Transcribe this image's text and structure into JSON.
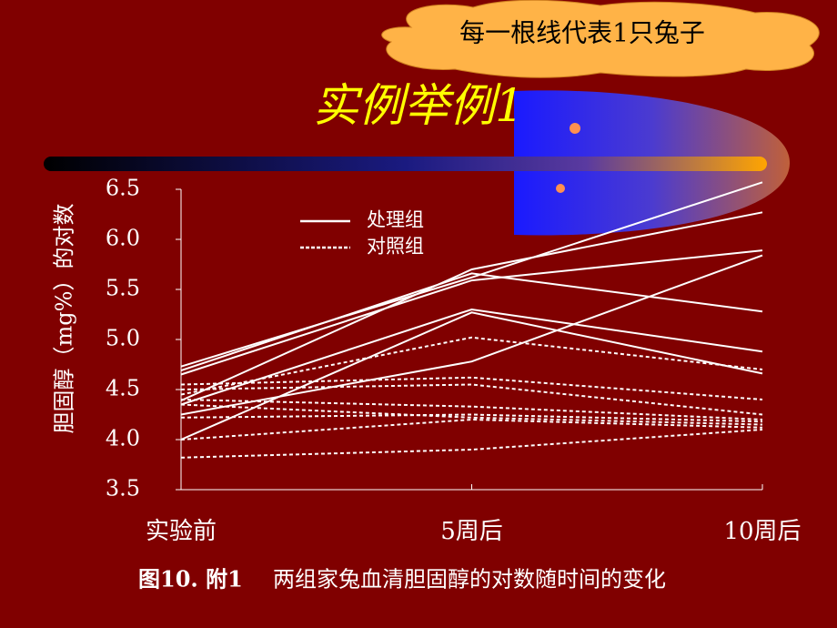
{
  "note_bubble": "每一根线代表1只兔子",
  "chart_data": {
    "type": "line",
    "title": "实例举例1",
    "y_label": "胆固醇（mg%）的对数",
    "categories": [
      "实验前",
      "5周后",
      "10周后"
    ],
    "ylim": [
      3.5,
      6.5
    ],
    "yticks": [
      3.5,
      {
        "value": 4,
        "label": "4.0"
      },
      4.5,
      {
        "value": 5,
        "label": "5.0"
      },
      5.5,
      {
        "value": 6,
        "label": "6.0"
      },
      6.5
    ],
    "series": [
      {
        "name": "处理组",
        "color": "#ffffff",
        "dashed": false,
        "lines": [
          [
            4.73,
            5.62,
            6.57
          ],
          [
            4.69,
            5.66,
            5.28
          ],
          [
            4.65,
            5.59,
            5.89
          ],
          [
            4.39,
            5.7,
            6.27
          ],
          [
            4.35,
            5.3,
            4.88
          ],
          [
            4.25,
            4.78,
            5.84
          ],
          [
            4.0,
            5.27,
            4.66
          ]
        ]
      },
      {
        "name": "对照组",
        "color": "#ffffff",
        "dashed": true,
        "lines": [
          [
            4.45,
            5.02,
            4.7
          ],
          [
            4.55,
            4.62,
            4.4
          ],
          [
            4.5,
            4.55,
            4.25
          ],
          [
            4.4,
            4.33,
            4.2
          ],
          [
            4.22,
            4.25,
            4.18
          ],
          [
            4.35,
            4.22,
            4.15
          ],
          [
            4.0,
            4.2,
            4.12
          ],
          [
            3.82,
            3.9,
            4.1
          ]
        ]
      }
    ],
    "caption_label": "图10. 附1",
    "caption": "两组家兔血清胆固醇的对数随时间的变化"
  }
}
